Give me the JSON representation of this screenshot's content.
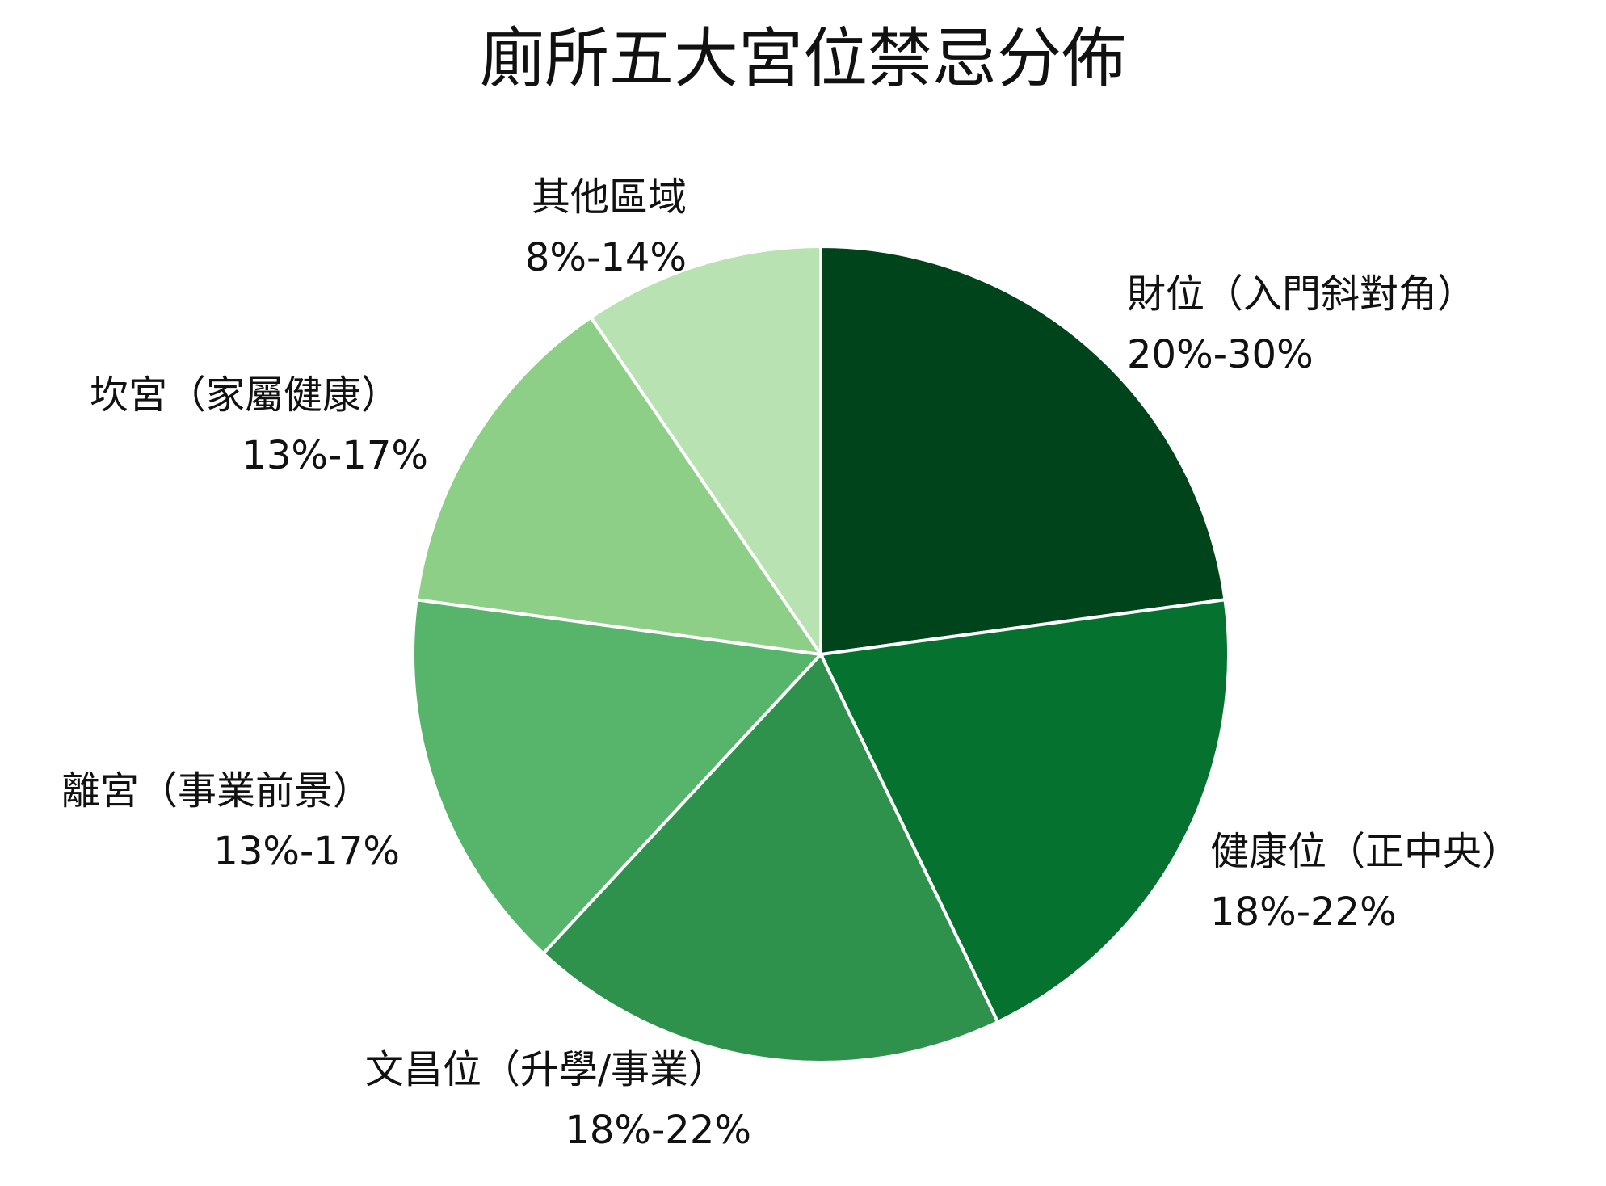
{
  "chart_data": {
    "type": "pie",
    "title": "廁所五大宮位禁忌分佈",
    "start_angle": "12 o'clock",
    "direction": "clockwise",
    "slices": [
      {
        "name": "財位（入門斜對角）",
        "range": "20%-30%",
        "value": 24,
        "color": "#00441b"
      },
      {
        "name": "健康位（正中央）",
        "range": "18%-22%",
        "value": 21,
        "color": "#067230"
      },
      {
        "name": "文昌位（升學/事業）",
        "range": "18%-22%",
        "value": 20,
        "color": "#2e924c"
      },
      {
        "name": "離宮（事業前景）",
        "range": "13%-17%",
        "value": 16,
        "color": "#56b56b"
      },
      {
        "name": "坎宮（家屬健康）",
        "range": "13%-17%",
        "value": 14,
        "color": "#8ecf88"
      },
      {
        "name": "其他區域",
        "range": "8%-14%",
        "value": 10,
        "color": "#b8e2b1"
      }
    ]
  }
}
